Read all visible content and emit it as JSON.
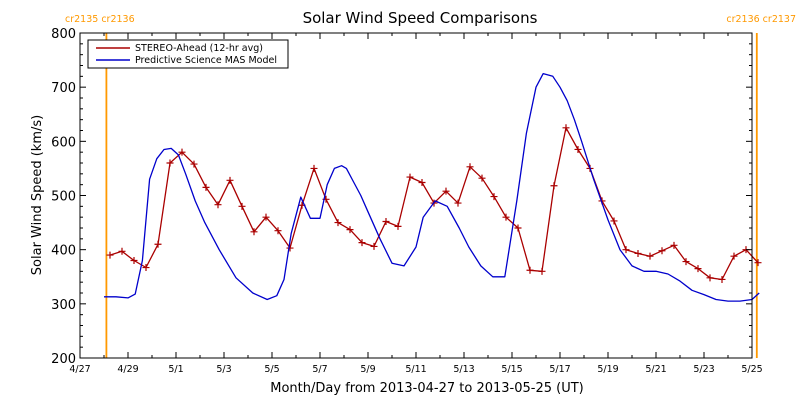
{
  "chart_data": {
    "type": "line",
    "title": "Solar Wind Speed Comparisons",
    "xlabel": "Month/Day from 2013-04-27 to 2013-05-25 (UT)",
    "ylabel": "Solar Wind Speed (km/s)",
    "xlim": [
      0,
      28
    ],
    "ylim": [
      200,
      800
    ],
    "grid": false,
    "legend_position": "top-left",
    "y_ticks": [
      "200",
      "300",
      "400",
      "500",
      "600",
      "700",
      "800"
    ],
    "y_tick_values": [
      200,
      300,
      400,
      500,
      600,
      700,
      800
    ],
    "x_ticks": [
      {
        "x": 0,
        "label": "4/27"
      },
      {
        "x": 2,
        "label": "4/29"
      },
      {
        "x": 4,
        "label": "5/1"
      },
      {
        "x": 6,
        "label": "5/3"
      },
      {
        "x": 8,
        "label": "5/5"
      },
      {
        "x": 10,
        "label": "5/7"
      },
      {
        "x": 12,
        "label": "5/9"
      },
      {
        "x": 14,
        "label": "5/11"
      },
      {
        "x": 16,
        "label": "5/13"
      },
      {
        "x": 18,
        "label": "5/15"
      },
      {
        "x": 20,
        "label": "5/17"
      },
      {
        "x": 22,
        "label": "5/19"
      },
      {
        "x": 24,
        "label": "5/21"
      },
      {
        "x": 26,
        "label": "5/23"
      },
      {
        "x": 28,
        "label": "5/25"
      }
    ],
    "carrington_markers": [
      {
        "x": 1.1,
        "label": "cr2135 cr2136",
        "label_anchor": "start",
        "color": "#ff9900"
      },
      {
        "x": 28.2,
        "label": "cr2136 cr2137",
        "label_anchor": "end",
        "color": "#ff9900"
      }
    ],
    "series": [
      {
        "name": "STEREO-Ahead (12-hr avg)",
        "color": "#aa0000",
        "marker": "plus",
        "x": [
          1.25,
          1.75,
          2.25,
          2.75,
          3.25,
          3.75,
          4.25,
          4.75,
          5.25,
          5.75,
          6.25,
          6.75,
          7.25,
          7.75,
          8.25,
          8.75,
          9.25,
          9.75,
          10.25,
          10.75,
          11.25,
          11.75,
          12.25,
          12.75,
          13.25,
          13.75,
          14.25,
          14.75,
          15.25,
          15.75,
          16.25,
          16.75,
          17.25,
          17.75,
          18.25,
          18.75,
          19.25,
          19.75,
          20.25,
          20.75,
          21.25,
          21.75,
          22.25,
          22.75,
          23.25,
          23.75,
          24.25,
          24.75,
          25.25,
          25.75,
          26.25,
          26.75,
          27.25,
          27.75,
          28.25
        ],
        "values": [
          390,
          397,
          380,
          367,
          410,
          560,
          580,
          558,
          515,
          483,
          528,
          480,
          433,
          460,
          435,
          403,
          482,
          550,
          493,
          450,
          437,
          413,
          406,
          452,
          443,
          534,
          524,
          486,
          508,
          486,
          553,
          532,
          498,
          460,
          440,
          362,
          360,
          518,
          625,
          585,
          550,
          490,
          453,
          400,
          393,
          388,
          398,
          408,
          378,
          365,
          348,
          345,
          388,
          400,
          376
        ]
      },
      {
        "name": "Predictive Science MAS Model",
        "color": "#0000cc",
        "marker": "none",
        "x": [
          1.0,
          1.5,
          2.0,
          2.3,
          2.6,
          2.9,
          3.2,
          3.5,
          3.8,
          4.1,
          4.4,
          4.8,
          5.2,
          5.8,
          6.5,
          7.2,
          7.8,
          8.2,
          8.5,
          8.8,
          9.2,
          9.6,
          10.0,
          10.3,
          10.6,
          10.9,
          11.1,
          11.4,
          11.7,
          12.0,
          12.5,
          13.0,
          13.5,
          14.0,
          14.3,
          14.8,
          15.3,
          15.8,
          16.2,
          16.7,
          17.2,
          17.7,
          18.2,
          18.6,
          19.0,
          19.3,
          19.7,
          20.0,
          20.3,
          20.6,
          20.9,
          21.4,
          22.0,
          22.5,
          23.0,
          23.5,
          24.0,
          24.5,
          25.0,
          25.5,
          26.0,
          26.5,
          27.0,
          27.5,
          28.0,
          28.3
        ],
        "values": [
          313,
          313,
          311,
          318,
          380,
          530,
          568,
          585,
          587,
          575,
          540,
          490,
          450,
          400,
          348,
          320,
          308,
          315,
          345,
          430,
          497,
          458,
          458,
          520,
          550,
          555,
          550,
          525,
          500,
          470,
          420,
          375,
          370,
          405,
          460,
          490,
          480,
          440,
          405,
          370,
          350,
          350,
          490,
          615,
          700,
          725,
          720,
          700,
          675,
          640,
          600,
          530,
          455,
          400,
          370,
          360,
          360,
          355,
          342,
          325,
          317,
          308,
          305,
          305,
          308,
          320
        ]
      }
    ]
  }
}
